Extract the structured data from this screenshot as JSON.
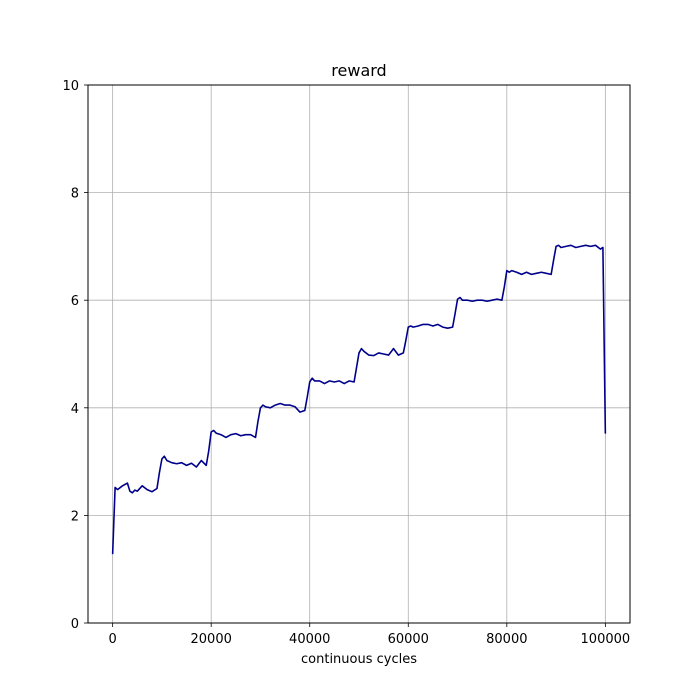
{
  "chart_data": {
    "type": "line",
    "title": "reward",
    "xlabel": "continuous cycles",
    "ylabel": "",
    "xlim": [
      -5000,
      105000
    ],
    "ylim": [
      0,
      10
    ],
    "xticks": [
      0,
      20000,
      40000,
      60000,
      80000,
      100000
    ],
    "yticks": [
      0,
      2,
      4,
      6,
      8,
      10
    ],
    "xtick_labels": [
      "0",
      "20000",
      "40000",
      "60000",
      "80000",
      "100000"
    ],
    "ytick_labels": [
      "0",
      "2",
      "4",
      "6",
      "8",
      "10"
    ],
    "grid": true,
    "series": [
      {
        "color": "#00008b",
        "x": [
          0,
          500,
          1000,
          2000,
          3000,
          3500,
          4000,
          4500,
          5000,
          6000,
          7000,
          8000,
          9000,
          9500,
          10000,
          10500,
          11000,
          12000,
          13000,
          14000,
          15000,
          16000,
          17000,
          18000,
          19000,
          19500,
          20000,
          20500,
          21000,
          22000,
          23000,
          24000,
          25000,
          26000,
          27000,
          28000,
          29000,
          29500,
          30000,
          30500,
          31000,
          32000,
          33000,
          34000,
          35000,
          36000,
          37000,
          38000,
          39000,
          39500,
          40000,
          40500,
          41000,
          42000,
          43000,
          44000,
          45000,
          46000,
          47000,
          48000,
          49000,
          49500,
          50000,
          50500,
          51000,
          52000,
          53000,
          54000,
          55000,
          56000,
          57000,
          58000,
          59000,
          59500,
          60000,
          60500,
          61000,
          62000,
          63000,
          64000,
          65000,
          66000,
          67000,
          68000,
          69000,
          69500,
          70000,
          70500,
          71000,
          72000,
          73000,
          74000,
          75000,
          76000,
          77000,
          78000,
          79000,
          79500,
          80000,
          80500,
          81000,
          82000,
          83000,
          84000,
          85000,
          86000,
          87000,
          88000,
          89000,
          89500,
          90000,
          90500,
          91000,
          92000,
          93000,
          94000,
          95000,
          96000,
          97000,
          98000,
          99000,
          99500,
          100000
        ],
        "y": [
          1.28,
          2.52,
          2.48,
          2.55,
          2.6,
          2.45,
          2.42,
          2.47,
          2.45,
          2.55,
          2.48,
          2.44,
          2.5,
          2.8,
          3.05,
          3.1,
          3.02,
          2.98,
          2.96,
          2.98,
          2.93,
          2.97,
          2.9,
          3.02,
          2.93,
          3.2,
          3.55,
          3.58,
          3.53,
          3.5,
          3.45,
          3.5,
          3.52,
          3.48,
          3.5,
          3.5,
          3.45,
          3.75,
          4.0,
          4.05,
          4.02,
          4.0,
          4.05,
          4.08,
          4.05,
          4.05,
          4.02,
          3.92,
          3.95,
          4.2,
          4.48,
          4.55,
          4.5,
          4.5,
          4.45,
          4.5,
          4.48,
          4.5,
          4.45,
          4.5,
          4.48,
          4.75,
          5.02,
          5.1,
          5.05,
          4.98,
          4.97,
          5.02,
          5.0,
          4.98,
          5.1,
          4.98,
          5.02,
          5.25,
          5.5,
          5.52,
          5.5,
          5.52,
          5.55,
          5.55,
          5.52,
          5.55,
          5.5,
          5.48,
          5.5,
          5.75,
          6.02,
          6.05,
          6.0,
          6.0,
          5.98,
          6.0,
          6.0,
          5.98,
          6.0,
          6.02,
          6.0,
          6.25,
          6.55,
          6.52,
          6.55,
          6.52,
          6.48,
          6.52,
          6.48,
          6.5,
          6.52,
          6.5,
          6.48,
          6.75,
          7.0,
          7.02,
          6.98,
          7.0,
          7.02,
          6.98,
          7.0,
          7.02,
          7.0,
          7.02,
          6.95,
          6.98,
          3.52
        ]
      }
    ]
  }
}
